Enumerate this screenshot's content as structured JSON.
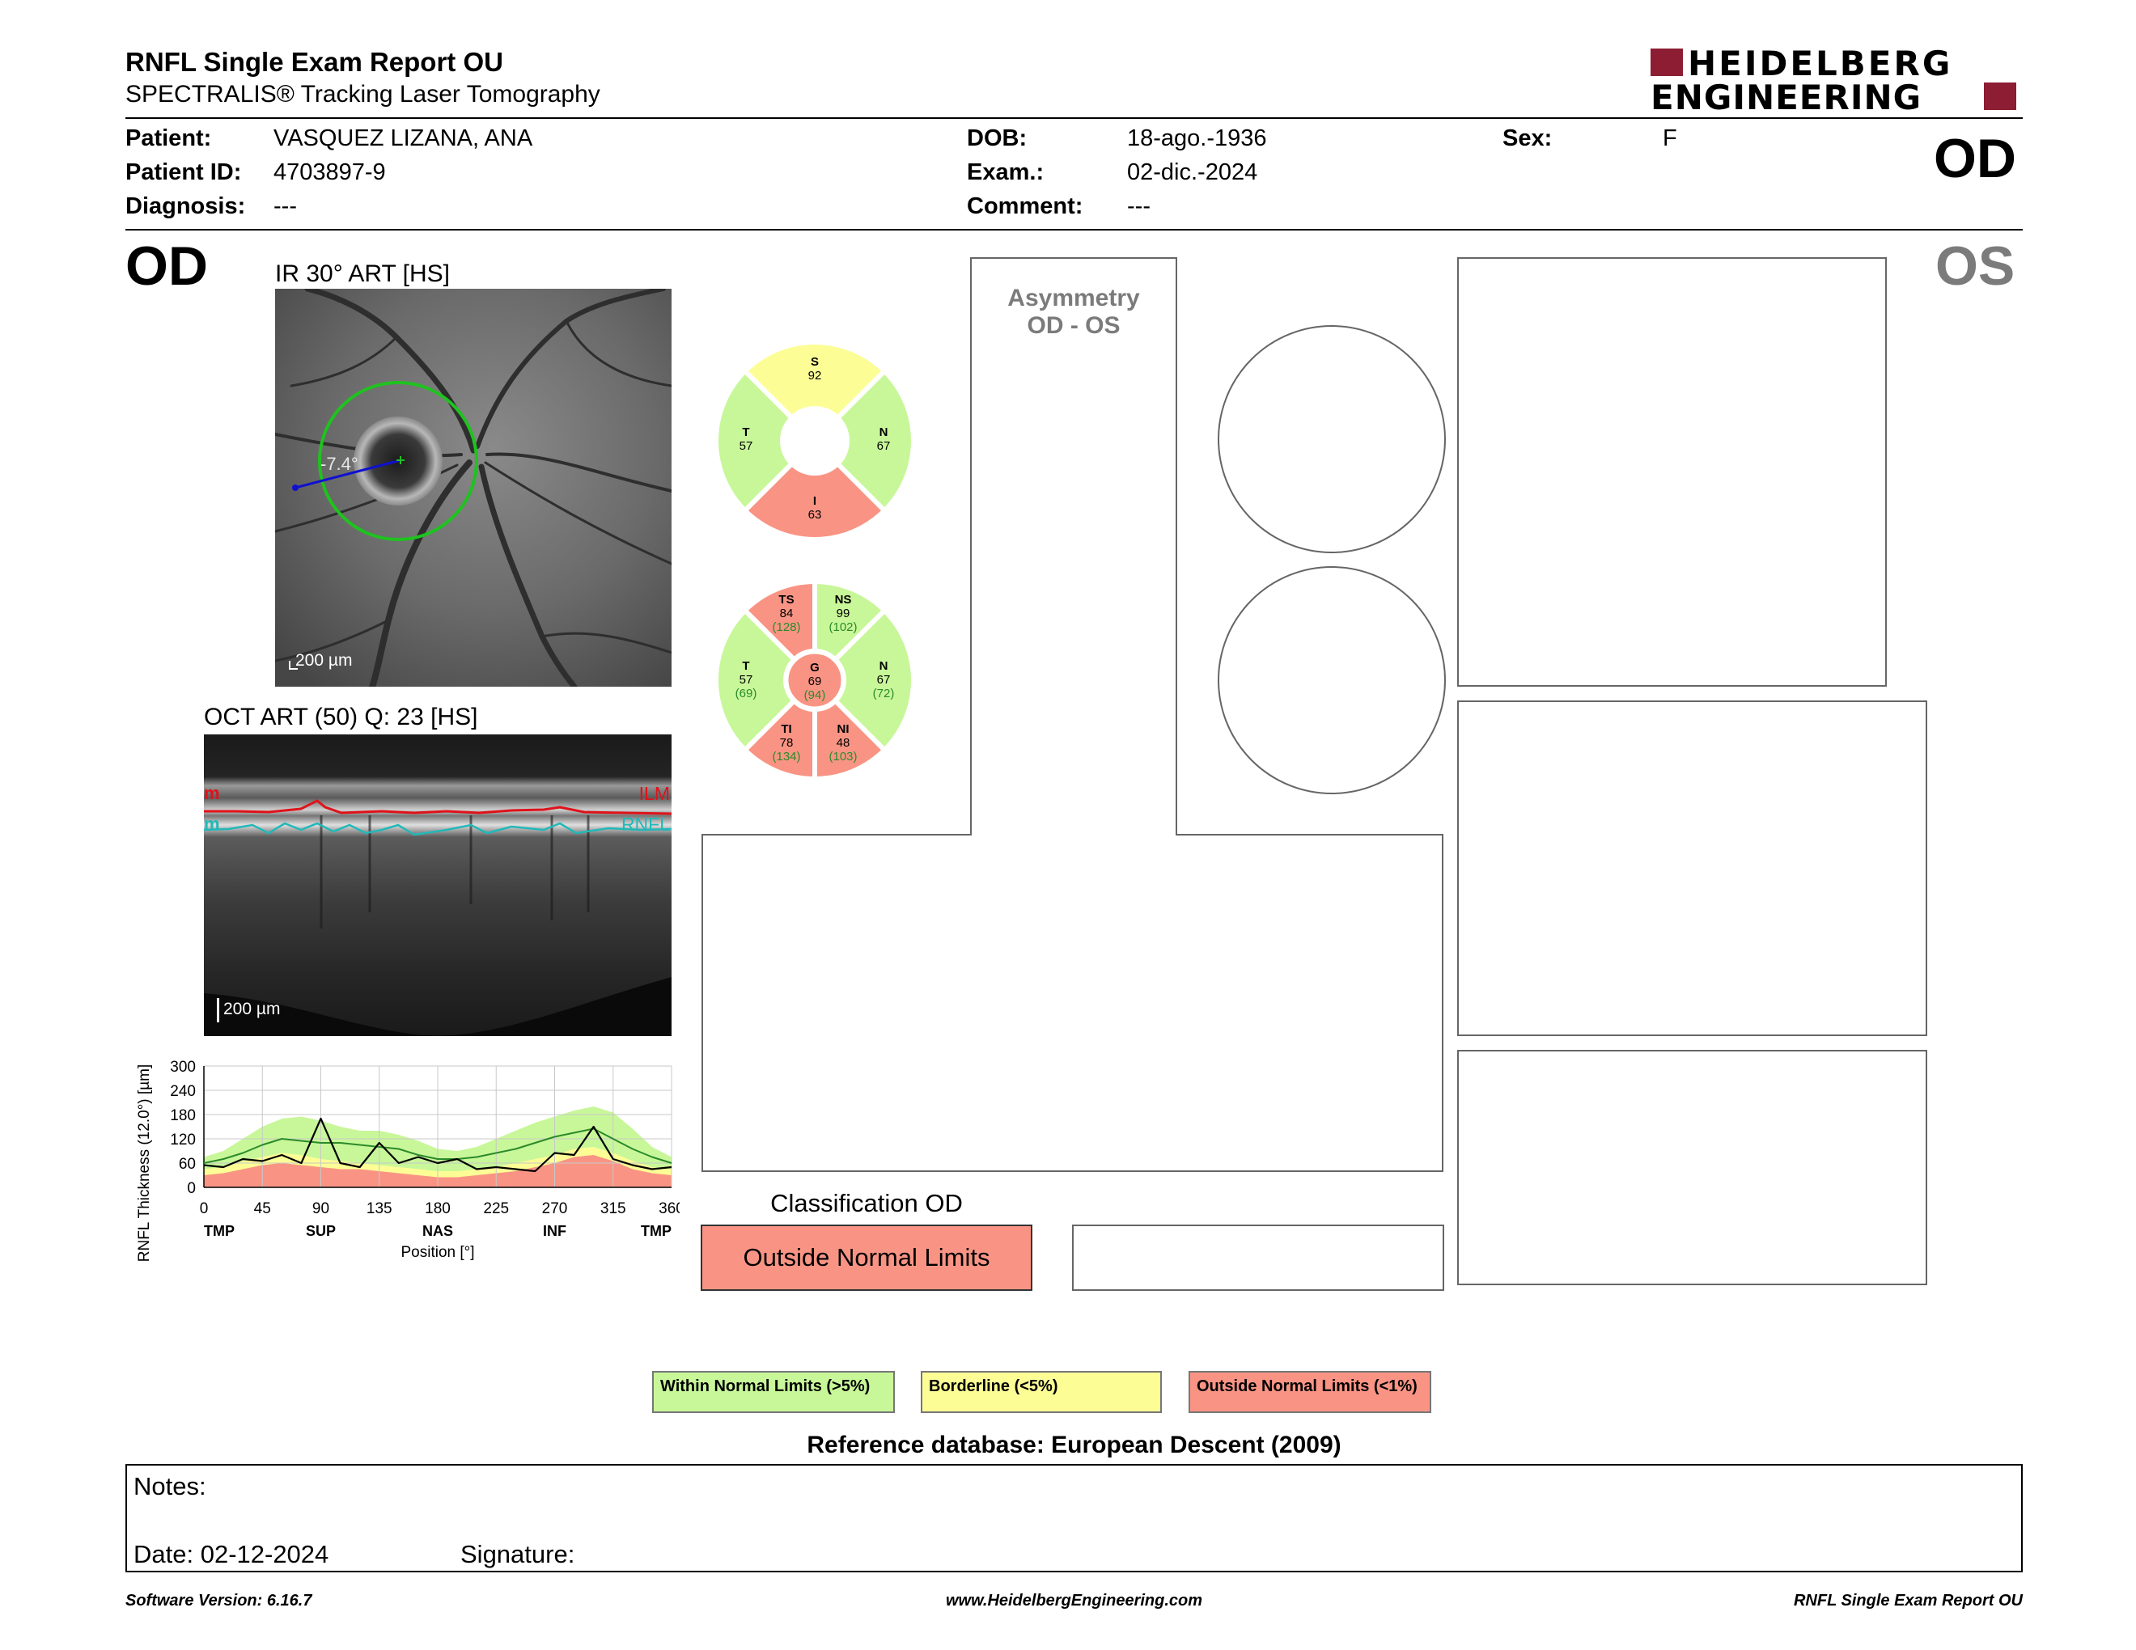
{
  "header": {
    "title": "RNFL Single Exam Report OU",
    "subtitle": "SPECTRALIS® Tracking Laser Tomography",
    "logo_line1": "HEIDELBERG",
    "logo_line2": "ENGINEERING",
    "eye_top": "OD"
  },
  "patient": {
    "patient_label": "Patient:",
    "patient": "VASQUEZ LIZANA, ANA",
    "id_label": "Patient ID:",
    "id": "4703897-9",
    "diagnosis_label": "Diagnosis:",
    "diagnosis": "---",
    "dob_label": "DOB:",
    "dob": "18-ago.-1936",
    "exam_label": "Exam.:",
    "exam": "02-dic.-2024",
    "comment_label": "Comment:",
    "comment": "---",
    "sex_label": "Sex:",
    "sex": "F"
  },
  "left": {
    "eye": "OD",
    "ir_title": "IR 30° ART [HS]",
    "ir_scale": "200 µm",
    "ir_angle": "-7.4°",
    "oct_title": "OCT ART (50) Q: 23 [HS]",
    "oct_scale": "200 µm",
    "oct_ilm": "ILM",
    "oct_rnfl": "RNFL",
    "oct_left_edge": "m"
  },
  "right": {
    "eye": "OS",
    "asymmetry_line1": "Asymmetry",
    "asymmetry_line2": "OD - OS"
  },
  "colors": {
    "normal": "#c8f799",
    "borderline": "#fdfd96",
    "outside": "#f99484",
    "logo_red": "#8c1d32",
    "os_gray": "#7b7b7b"
  },
  "sectors4": {
    "S": {
      "label": "S",
      "value": "92",
      "status": "borderline"
    },
    "N": {
      "label": "N",
      "value": "67",
      "status": "normal"
    },
    "I": {
      "label": "I",
      "value": "63",
      "status": "outside"
    },
    "T": {
      "label": "T",
      "value": "57",
      "status": "normal"
    }
  },
  "sectors6": {
    "TS": {
      "label": "TS",
      "value": "84",
      "normative": "(128)",
      "status": "outside"
    },
    "NS": {
      "label": "NS",
      "value": "99",
      "normative": "(102)",
      "status": "normal"
    },
    "N": {
      "label": "N",
      "value": "67",
      "normative": "(72)",
      "status": "normal"
    },
    "NI": {
      "label": "NI",
      "value": "48",
      "normative": "(103)",
      "status": "outside"
    },
    "TI": {
      "label": "TI",
      "value": "78",
      "normative": "(134)",
      "status": "outside"
    },
    "T": {
      "label": "T",
      "value": "57",
      "normative": "(69)",
      "status": "normal"
    },
    "G": {
      "label": "G",
      "value": "69",
      "normative": "(94)",
      "status": "outside"
    }
  },
  "chart_data": {
    "type": "line",
    "ylabel": "RNFL Thickness (12.0°) [µm]",
    "xlabel": "Position [°]",
    "ylim": [
      0,
      300
    ],
    "xlim": [
      0,
      360
    ],
    "yticks": [
      0,
      60,
      120,
      180,
      240,
      300
    ],
    "xticks": [
      0,
      45,
      90,
      135,
      180,
      225,
      270,
      315,
      360
    ],
    "xtick_labels": [
      "0",
      "45",
      "90",
      "135",
      "180",
      "225",
      "270",
      "315",
      "360"
    ],
    "region_labels": [
      {
        "x": 0,
        "label": "TMP"
      },
      {
        "x": 90,
        "label": "SUP"
      },
      {
        "x": 180,
        "label": "NAS"
      },
      {
        "x": 270,
        "label": "INF"
      },
      {
        "x": 360,
        "label": "TMP"
      }
    ],
    "grid": true,
    "x": [
      0,
      15,
      30,
      45,
      60,
      75,
      90,
      105,
      120,
      135,
      150,
      165,
      180,
      195,
      210,
      225,
      240,
      255,
      270,
      285,
      300,
      315,
      330,
      345,
      360
    ],
    "series": [
      {
        "values": [
          55,
          50,
          70,
          65,
          80,
          60,
          170,
          60,
          50,
          110,
          60,
          75,
          60,
          70,
          45,
          50,
          45,
          40,
          85,
          80,
          150,
          70,
          55,
          45,
          50
        ]
      },
      {
        "values": [
          60,
          70,
          85,
          105,
          120,
          115,
          110,
          110,
          105,
          100,
          95,
          80,
          70,
          70,
          75,
          85,
          95,
          110,
          125,
          135,
          145,
          120,
          95,
          75,
          60
        ]
      }
    ],
    "bands": {
      "outside_upper": [
        30,
        35,
        45,
        55,
        60,
        55,
        50,
        45,
        45,
        40,
        35,
        30,
        25,
        25,
        30,
        35,
        40,
        50,
        60,
        75,
        80,
        65,
        45,
        35,
        30
      ],
      "borderline_upper": [
        45,
        50,
        65,
        75,
        85,
        80,
        70,
        65,
        60,
        55,
        50,
        45,
        40,
        40,
        45,
        50,
        60,
        70,
        80,
        95,
        100,
        85,
        65,
        50,
        45
      ],
      "normal_upper": [
        75,
        90,
        120,
        150,
        170,
        175,
        165,
        150,
        140,
        140,
        130,
        115,
        95,
        90,
        100,
        120,
        140,
        160,
        175,
        190,
        200,
        185,
        145,
        100,
        75
      ]
    }
  },
  "classification": {
    "title": "Classification OD",
    "result": "Outside Normal Limits"
  },
  "legend": {
    "normal": "Within Normal Limits (>5%)",
    "borderline": "Borderline (<5%)",
    "outside": "Outside Normal Limits (<1%)"
  },
  "reference": "Reference database: European Descent (2009)",
  "notes": {
    "notes_label": "Notes:",
    "date_label": "Date: 02-12-2024",
    "signature_label": "Signature:"
  },
  "footer": {
    "software": "Software Version: 6.16.7",
    "website": "www.HeidelbergEngineering.com",
    "report": "RNFL Single Exam Report OU"
  }
}
